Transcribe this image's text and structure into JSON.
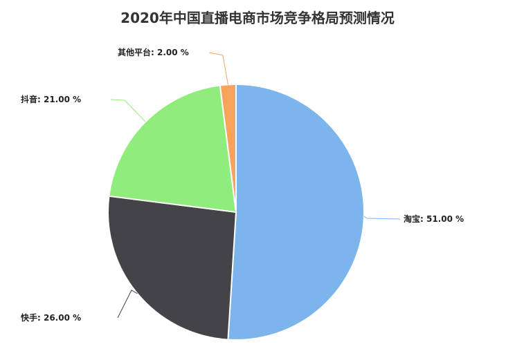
{
  "chart_data": {
    "type": "pie",
    "title": "2020年中国直播电商市场竞争格局预测情况",
    "unit": "%",
    "slices": [
      {
        "name": "淘宝",
        "value": 51.0,
        "label": "淘宝: 51.00 %",
        "color": "#7cb5ec"
      },
      {
        "name": "快手",
        "value": 26.0,
        "label": "快手: 26.00 %",
        "color": "#434348"
      },
      {
        "name": "抖音",
        "value": 21.0,
        "label": "抖音: 21.00 %",
        "color": "#90ed7d"
      },
      {
        "name": "其他平台",
        "value": 2.0,
        "label": "其他平台: 2.00 %",
        "color": "#f7a35c"
      }
    ]
  }
}
